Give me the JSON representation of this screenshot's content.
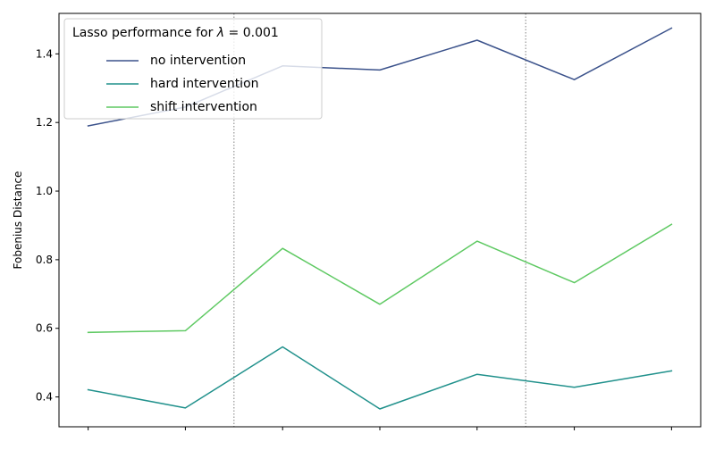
{
  "chart_data": {
    "type": "line",
    "x": [
      0,
      1,
      2,
      3,
      4,
      5,
      6
    ],
    "xlim": [
      -0.3,
      6.3
    ],
    "ylim": [
      0.313,
      1.518
    ],
    "yticks": [
      0.4,
      0.6,
      0.8,
      1.0,
      1.2,
      1.4
    ],
    "ytick_labels": [
      "0.4",
      "0.6",
      "0.8",
      "1.0",
      "1.2",
      "1.4"
    ],
    "ylabel": "Fobenius Distance",
    "xlabel": "",
    "vertical_dividers": [
      1.5,
      4.5
    ],
    "grid": false,
    "legend": {
      "placement": "top-left",
      "title_prefix": "Lasso performance for ",
      "title_lambda": "λ",
      "title_suffix": " = 0.001"
    },
    "series": [
      {
        "name": "no intervention",
        "color": "#3b528b",
        "values": [
          1.19,
          1.245,
          1.365,
          1.353,
          1.44,
          1.325,
          1.475
        ]
      },
      {
        "name": "hard intervention",
        "color": "#21918c",
        "values": [
          0.421,
          0.368,
          0.546,
          0.365,
          0.466,
          0.428,
          0.476
        ]
      },
      {
        "name": "shift intervention",
        "color": "#5ec962",
        "values": [
          0.588,
          0.593,
          0.833,
          0.67,
          0.854,
          0.733,
          0.903
        ]
      }
    ]
  }
}
